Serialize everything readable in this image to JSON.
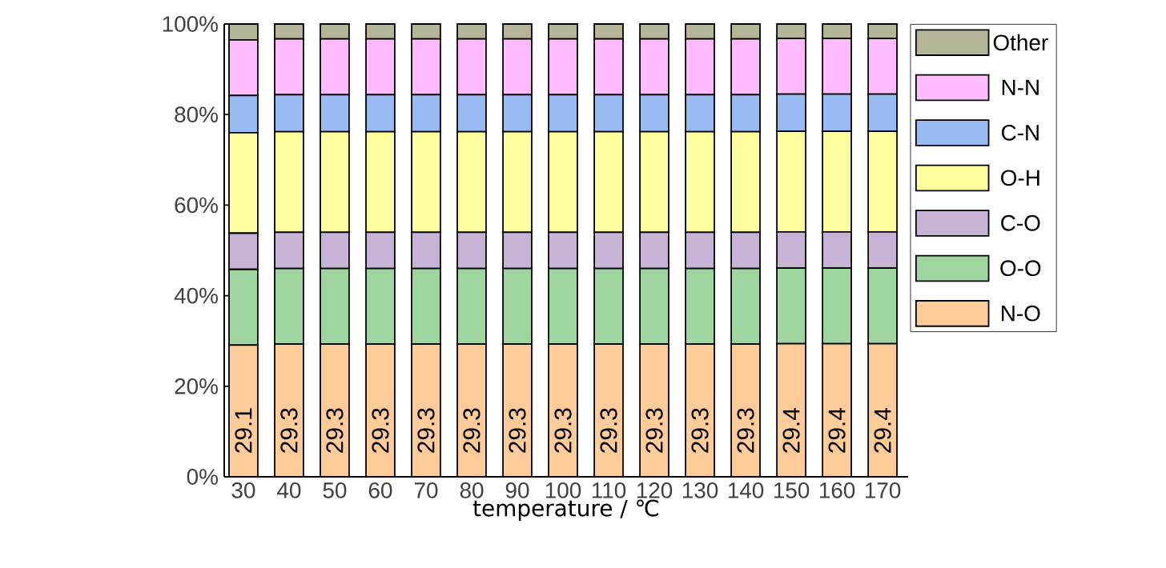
{
  "chart_data": {
    "type": "bar",
    "stacked": true,
    "xlabel": "temperature / ℃",
    "categories": [
      "30",
      "40",
      "50",
      "60",
      "70",
      "80",
      "90",
      "100",
      "110",
      "120",
      "130",
      "140",
      "150",
      "160",
      "170"
    ],
    "ylim": [
      0,
      100
    ],
    "yticks": [
      {
        "value": 0,
        "label": "0%"
      },
      {
        "value": 20,
        "label": "20%"
      },
      {
        "value": 40,
        "label": "40%"
      },
      {
        "value": 60,
        "label": "60%"
      },
      {
        "value": 80,
        "label": "80%"
      },
      {
        "value": 100,
        "label": "100%"
      }
    ],
    "legend": "right",
    "grid": false,
    "series": [
      {
        "name": "N-O",
        "color": "#ffcc99",
        "values": [
          29.1,
          29.3,
          29.3,
          29.3,
          29.3,
          29.3,
          29.3,
          29.3,
          29.3,
          29.3,
          29.3,
          29.3,
          29.4,
          29.4,
          29.4
        ],
        "value_labels": [
          "29.1",
          "29.3",
          "29.3",
          "29.3",
          "29.3",
          "29.3",
          "29.3",
          "29.3",
          "29.3",
          "29.3",
          "29.3",
          "29.3",
          "29.4",
          "29.4",
          "29.4"
        ]
      },
      {
        "name": "O-O",
        "color": "#9fd69f",
        "values": [
          16.7,
          16.7,
          16.7,
          16.7,
          16.7,
          16.7,
          16.7,
          16.7,
          16.7,
          16.7,
          16.7,
          16.7,
          16.7,
          16.7,
          16.7
        ]
      },
      {
        "name": "C-O",
        "color": "#c6b3d6",
        "values": [
          8.0,
          8.0,
          8.0,
          8.0,
          8.0,
          8.0,
          8.0,
          8.0,
          8.0,
          8.0,
          8.0,
          8.0,
          8.0,
          8.0,
          8.0
        ]
      },
      {
        "name": "O-H",
        "color": "#ffff9f",
        "values": [
          22.2,
          22.2,
          22.2,
          22.2,
          22.2,
          22.2,
          22.2,
          22.2,
          22.2,
          22.2,
          22.2,
          22.2,
          22.2,
          22.2,
          22.2
        ]
      },
      {
        "name": "C-N",
        "color": "#99bbf3",
        "values": [
          8.2,
          8.2,
          8.2,
          8.2,
          8.2,
          8.2,
          8.2,
          8.2,
          8.2,
          8.2,
          8.2,
          8.2,
          8.2,
          8.2,
          8.2
        ]
      },
      {
        "name": "N-N",
        "color": "#ffbbff",
        "values": [
          12.3,
          12.3,
          12.3,
          12.3,
          12.3,
          12.3,
          12.3,
          12.3,
          12.3,
          12.3,
          12.3,
          12.3,
          12.3,
          12.3,
          12.3
        ]
      },
      {
        "name": "Other",
        "color": "#b4b497",
        "values": [
          3.5,
          3.3,
          3.3,
          3.3,
          3.3,
          3.3,
          3.3,
          3.3,
          3.3,
          3.3,
          3.3,
          3.3,
          3.2,
          3.2,
          3.2
        ]
      }
    ]
  }
}
